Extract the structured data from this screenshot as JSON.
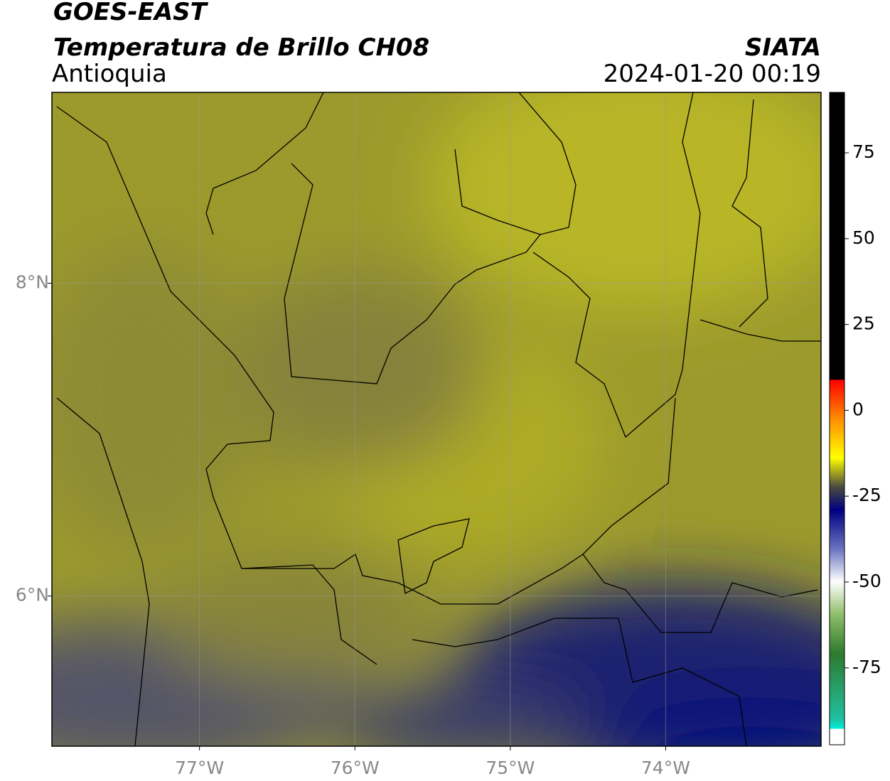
{
  "header": {
    "title": "GOES-EAST",
    "subtitle": "Temperatura de Brillo CH08",
    "region": "Antioquia",
    "source": "SIATA",
    "timestamp": "2024-01-20 00:19"
  },
  "map": {
    "xlim": [
      -77.95,
      -73.0
    ],
    "ylim": [
      5.04,
      9.22
    ],
    "xticks": [
      {
        "value": -77,
        "label": "77°W"
      },
      {
        "value": -76,
        "label": "76°W"
      },
      {
        "value": -75,
        "label": "75°W"
      },
      {
        "value": -74,
        "label": "74°W"
      }
    ],
    "yticks": [
      {
        "value": 8,
        "label": "8°N"
      },
      {
        "value": 6,
        "label": "6°N"
      }
    ],
    "grid": true
  },
  "colorbar": {
    "lim": [
      -97.4,
      92.6
    ],
    "ticks": [
      75,
      50,
      25,
      0,
      -25,
      -50,
      -75
    ]
  }
}
